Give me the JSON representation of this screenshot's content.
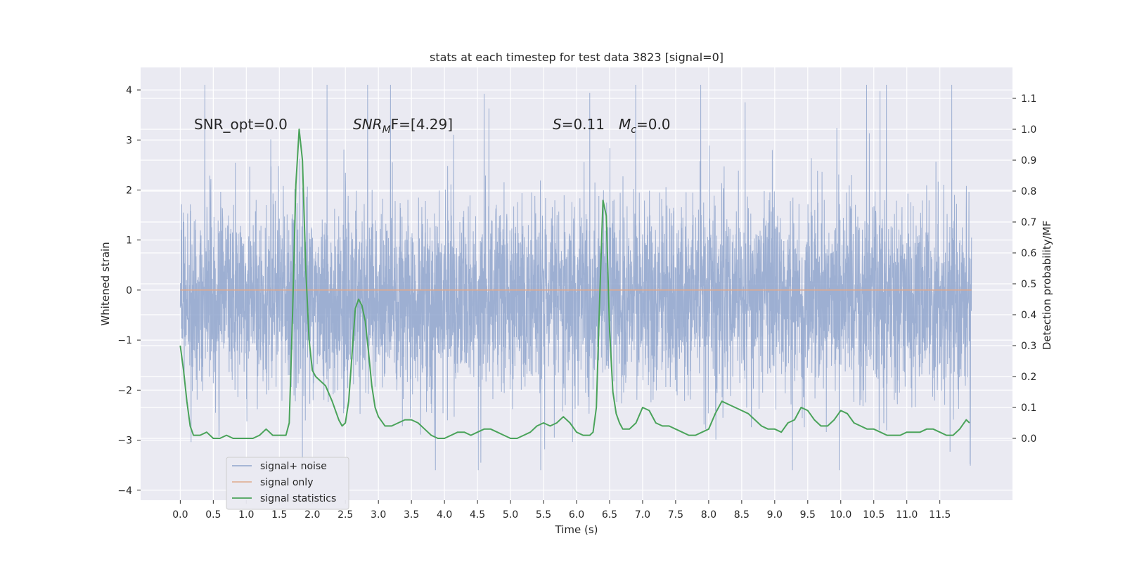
{
  "chart_data": {
    "type": "line",
    "title": "stats at each timestep for test data 3823 [signal=0]",
    "xlabel": "Time (s)",
    "ylabel": "Whitened strain",
    "ylabel_right": "Detection probability/MF",
    "xlim": [
      -0.6,
      12.6
    ],
    "ylim": [
      -4.2,
      4.45
    ],
    "ylim_right": [
      -0.2,
      1.2
    ],
    "x_ticks": [
      "0.0",
      "0.5",
      "1.0",
      "1.5",
      "2.0",
      "2.5",
      "3.0",
      "3.5",
      "4.0",
      "4.5",
      "5.0",
      "5.5",
      "6.0",
      "6.5",
      "7.0",
      "7.5",
      "8.0",
      "8.5",
      "9.0",
      "9.5",
      "10.0",
      "10.5",
      "11.0",
      "11.5"
    ],
    "y_ticks": [
      "−4",
      "−3",
      "−2",
      "−1",
      "0",
      "1",
      "2",
      "3",
      "4"
    ],
    "y_ticks_right": [
      "0.0",
      "0.1",
      "0.2",
      "0.3",
      "0.4",
      "0.5",
      "0.6",
      "0.7",
      "0.8",
      "0.9",
      "1.0",
      "1.1"
    ],
    "grid": true,
    "legend_position": "lower-left",
    "annotations": {
      "snr_opt": "SNR_opt=0.0",
      "snr_mf_main": "SNR",
      "snr_mf_sub": "M",
      "snr_mf_rest": "F=[4.29]",
      "s_label": "S",
      "s_value": "=0.11",
      "mc_label": "M",
      "mc_sub": "c",
      "mc_value": "=0.0"
    },
    "series": [
      {
        "name": "signal+ noise",
        "color": "#8fa4cd",
        "axis": "left",
        "x_range": [
          0,
          11.98
        ],
        "typical_band": [
          -1.7,
          1.4
        ],
        "envelope": [
          -3.6,
          4.1
        ]
      },
      {
        "name": "signal only",
        "color": "#e0a98c",
        "axis": "left",
        "x": [
          0,
          11.98
        ],
        "y": [
          0,
          0
        ]
      },
      {
        "name": "signal statistics",
        "color": "#4aa35a",
        "axis": "right",
        "x": [
          0.0,
          0.05,
          0.1,
          0.15,
          0.2,
          0.3,
          0.4,
          0.5,
          0.6,
          0.7,
          0.8,
          0.9,
          1.0,
          1.1,
          1.2,
          1.3,
          1.4,
          1.5,
          1.6,
          1.65,
          1.7,
          1.75,
          1.8,
          1.85,
          1.9,
          1.95,
          2.0,
          2.05,
          2.1,
          2.2,
          2.3,
          2.4,
          2.45,
          2.5,
          2.55,
          2.6,
          2.65,
          2.7,
          2.75,
          2.8,
          2.85,
          2.9,
          2.95,
          3.0,
          3.1,
          3.2,
          3.3,
          3.4,
          3.5,
          3.6,
          3.7,
          3.8,
          3.9,
          4.0,
          4.1,
          4.2,
          4.3,
          4.4,
          4.5,
          4.6,
          4.7,
          4.8,
          4.9,
          5.0,
          5.1,
          5.2,
          5.3,
          5.4,
          5.5,
          5.6,
          5.7,
          5.8,
          5.9,
          6.0,
          6.1,
          6.2,
          6.25,
          6.3,
          6.35,
          6.4,
          6.45,
          6.5,
          6.55,
          6.6,
          6.65,
          6.7,
          6.8,
          6.9,
          7.0,
          7.1,
          7.2,
          7.3,
          7.4,
          7.5,
          7.6,
          7.7,
          7.8,
          7.9,
          8.0,
          8.1,
          8.2,
          8.3,
          8.4,
          8.5,
          8.6,
          8.7,
          8.8,
          8.9,
          9.0,
          9.1,
          9.2,
          9.3,
          9.4,
          9.5,
          9.6,
          9.7,
          9.8,
          9.9,
          10.0,
          10.1,
          10.2,
          10.3,
          10.4,
          10.5,
          10.6,
          10.7,
          10.8,
          10.9,
          11.0,
          11.1,
          11.2,
          11.3,
          11.4,
          11.5,
          11.6,
          11.7,
          11.8,
          11.9,
          11.95
        ],
        "y": [
          0.3,
          0.22,
          0.12,
          0.04,
          0.01,
          0.01,
          0.02,
          0.0,
          0.0,
          0.01,
          0.0,
          0.0,
          0.0,
          0.0,
          0.01,
          0.03,
          0.01,
          0.01,
          0.01,
          0.05,
          0.4,
          0.82,
          1.0,
          0.9,
          0.55,
          0.32,
          0.22,
          0.2,
          0.19,
          0.17,
          0.12,
          0.06,
          0.04,
          0.05,
          0.12,
          0.27,
          0.42,
          0.45,
          0.43,
          0.38,
          0.28,
          0.17,
          0.1,
          0.07,
          0.04,
          0.04,
          0.05,
          0.06,
          0.06,
          0.05,
          0.03,
          0.01,
          0.0,
          0.0,
          0.01,
          0.02,
          0.02,
          0.01,
          0.02,
          0.03,
          0.03,
          0.02,
          0.01,
          0.0,
          0.0,
          0.01,
          0.02,
          0.04,
          0.05,
          0.04,
          0.05,
          0.07,
          0.05,
          0.02,
          0.01,
          0.01,
          0.02,
          0.1,
          0.45,
          0.77,
          0.72,
          0.35,
          0.15,
          0.08,
          0.05,
          0.03,
          0.03,
          0.05,
          0.1,
          0.09,
          0.05,
          0.04,
          0.04,
          0.03,
          0.02,
          0.01,
          0.01,
          0.02,
          0.03,
          0.08,
          0.12,
          0.11,
          0.1,
          0.09,
          0.08,
          0.06,
          0.04,
          0.03,
          0.03,
          0.02,
          0.05,
          0.06,
          0.1,
          0.09,
          0.06,
          0.04,
          0.04,
          0.06,
          0.09,
          0.08,
          0.05,
          0.04,
          0.03,
          0.03,
          0.02,
          0.01,
          0.01,
          0.01,
          0.02,
          0.02,
          0.02,
          0.03,
          0.03,
          0.02,
          0.01,
          0.01,
          0.03,
          0.06,
          0.05
        ]
      }
    ]
  }
}
